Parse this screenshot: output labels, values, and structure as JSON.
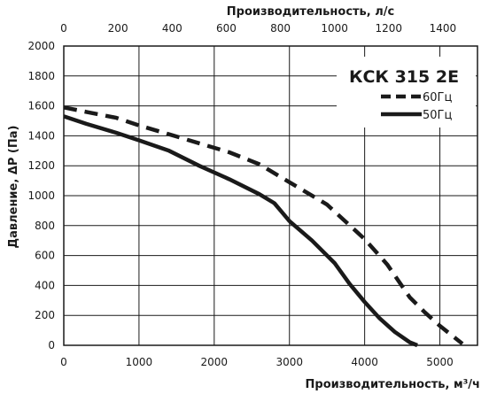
{
  "chart_data": {
    "type": "line",
    "title": "",
    "xlabel": "Производительность, м³/ч",
    "x2label": "Производительность, л/с",
    "ylabel": "Давление, ΔP (Па)",
    "xlim": [
      0,
      5500
    ],
    "x2lim": [
      0,
      1527.78
    ],
    "ylim": [
      0,
      2000
    ],
    "xticks": [
      "0",
      "1000",
      "2000",
      "3000",
      "4000",
      "5000"
    ],
    "x2ticks": [
      "0",
      "200",
      "400",
      "600",
      "800",
      "1000",
      "1200",
      "1400"
    ],
    "yticks": [
      "0",
      "200",
      "400",
      "600",
      "800",
      "1000",
      "1200",
      "1400",
      "1600",
      "1800",
      "2000"
    ],
    "grid": true,
    "legend": {
      "title": "КСК 315 2E",
      "position": "top-right"
    },
    "series": [
      {
        "name": "60Гц",
        "style": "dashed",
        "color": "#1a1a1a",
        "x": [
          0,
          300,
          700,
          1000,
          1400,
          1800,
          2200,
          2600,
          3000,
          3500,
          4000,
          4300,
          4600,
          4800,
          5000,
          5300
        ],
        "y": [
          1590,
          1560,
          1520,
          1470,
          1410,
          1350,
          1290,
          1210,
          1090,
          940,
          710,
          540,
          320,
          220,
          130,
          10
        ]
      },
      {
        "name": "50Гц",
        "style": "solid",
        "color": "#1a1a1a",
        "x": [
          0,
          300,
          700,
          1000,
          1400,
          1800,
          2200,
          2600,
          2800,
          2900,
          3000,
          3300,
          3600,
          3800,
          4000,
          4200,
          4400,
          4600,
          4700
        ],
        "y": [
          1530,
          1480,
          1420,
          1370,
          1300,
          1200,
          1110,
          1010,
          950,
          890,
          830,
          700,
          550,
          410,
          290,
          180,
          90,
          20,
          0
        ]
      }
    ]
  }
}
